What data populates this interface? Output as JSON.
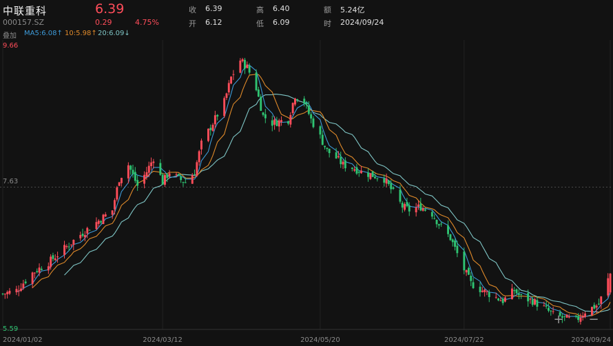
{
  "header": {
    "name": "中联重科",
    "code": "000157.SZ",
    "price": "6.39",
    "change": "0.29",
    "change_pct": "4.75%",
    "close_label": "收",
    "close_value": "6.39",
    "open_label": "开",
    "open_value": "6.12",
    "high_label": "高",
    "high_value": "6.40",
    "low_label": "低",
    "low_value": "6.09",
    "amount_label": "额",
    "amount_value": "5.24亿",
    "time_label": "时",
    "time_value": "2024/09/24",
    "overlay_label": "叠加",
    "ma5": "MA5:6.08↑",
    "ma10": "10:5.98↑",
    "ma20": "20:6.09↓"
  },
  "colors": {
    "up": "#ff4d5a",
    "down": "#2fc472",
    "ma5": "#3d9ad8",
    "ma10": "#e08a2a",
    "ma20": "#7fc6c6"
  },
  "controls": {
    "zoom_in": "+",
    "zoom_out": "−"
  },
  "chart_data": {
    "type": "candlestick",
    "y_axis": {
      "max_label": "9.66",
      "mid_label": "7.63",
      "min_label": "5.59",
      "ylim": [
        5.59,
        9.66
      ]
    },
    "x_ticks": [
      "2024/01/02",
      "2024/03/12",
      "2024/05/20",
      "2024/07/22",
      "2024/09/24"
    ],
    "last_candle": {
      "date": "2024/09/24",
      "open": 6.12,
      "high": 6.4,
      "low": 6.09,
      "close": 6.39
    },
    "close_path": [
      [
        "2024/01/02",
        6.1
      ],
      [
        "2024/01/08",
        6.15
      ],
      [
        "2024/01/15",
        6.4
      ],
      [
        "2024/01/22",
        6.55
      ],
      [
        "2024/01/29",
        6.75
      ],
      [
        "2024/02/05",
        6.95
      ],
      [
        "2024/02/19",
        7.3
      ],
      [
        "2024/02/22",
        7.75
      ],
      [
        "2024/02/26",
        7.95
      ],
      [
        "2024/03/01",
        7.65
      ],
      [
        "2024/03/05",
        7.85
      ],
      [
        "2024/03/08",
        8.05
      ],
      [
        "2024/03/12",
        7.7
      ],
      [
        "2024/03/15",
        7.85
      ],
      [
        "2024/03/19",
        7.75
      ],
      [
        "2024/03/22",
        7.7
      ],
      [
        "2024/03/26",
        7.85
      ],
      [
        "2024/03/29",
        8.25
      ],
      [
        "2024/04/03",
        8.55
      ],
      [
        "2024/04/08",
        8.85
      ],
      [
        "2024/04/11",
        9.2
      ],
      [
        "2024/04/15",
        9.45
      ],
      [
        "2024/04/18",
        9.35
      ],
      [
        "2024/04/22",
        9.05
      ],
      [
        "2024/04/25",
        8.65
      ],
      [
        "2024/04/29",
        8.55
      ],
      [
        "2024/05/06",
        8.6
      ],
      [
        "2024/05/09",
        8.95
      ],
      [
        "2024/05/13",
        8.85
      ],
      [
        "2024/05/16",
        8.6
      ],
      [
        "2024/05/20",
        8.35
      ],
      [
        "2024/05/23",
        8.15
      ],
      [
        "2024/05/27",
        8.05
      ],
      [
        "2024/05/30",
        7.95
      ],
      [
        "2024/06/04",
        7.9
      ],
      [
        "2024/06/07",
        7.85
      ],
      [
        "2024/06/12",
        7.8
      ],
      [
        "2024/06/17",
        7.75
      ],
      [
        "2024/06/20",
        7.6
      ],
      [
        "2024/06/25",
        7.35
      ],
      [
        "2024/06/28",
        7.3
      ],
      [
        "2024/07/03",
        7.35
      ],
      [
        "2024/07/08",
        7.25
      ],
      [
        "2024/07/11",
        7.1
      ],
      [
        "2024/07/16",
        6.9
      ],
      [
        "2024/07/22",
        6.45
      ],
      [
        "2024/07/25",
        6.25
      ],
      [
        "2024/07/30",
        6.15
      ],
      [
        "2024/08/05",
        6.05
      ],
      [
        "2024/08/08",
        6.0
      ],
      [
        "2024/08/13",
        6.15
      ],
      [
        "2024/08/16",
        6.05
      ],
      [
        "2024/08/21",
        6.0
      ],
      [
        "2024/08/26",
        5.9
      ],
      [
        "2024/08/30",
        5.8
      ],
      [
        "2024/09/04",
        5.75
      ],
      [
        "2024/09/09",
        5.72
      ],
      [
        "2024/09/13",
        5.85
      ],
      [
        "2024/09/19",
        5.95
      ],
      [
        "2024/09/24",
        6.39
      ]
    ]
  }
}
